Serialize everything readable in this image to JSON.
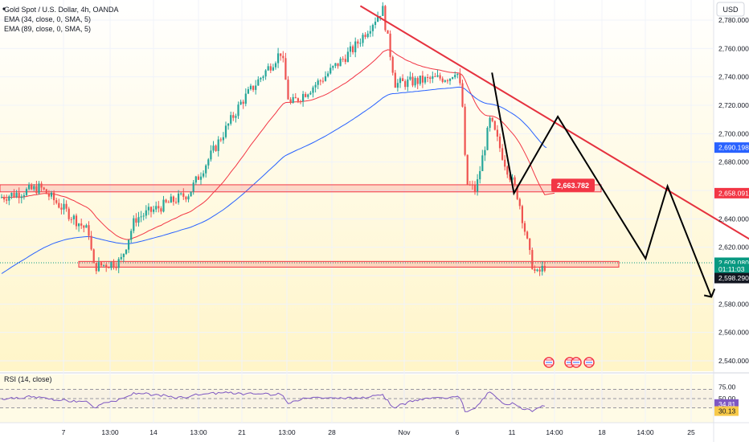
{
  "legend": {
    "symbol": "Gold Spot / U.S. Dollar, 4h, OANDA",
    "ema1": "EMA (34, close, 0, SMA, 5)",
    "ema2": "EMA (89, close, 0, SMA, 5)"
  },
  "currency_button": "USD",
  "colors": {
    "up": "#26a69a",
    "down": "#ef5350",
    "ema_fast": "#f23645",
    "ema_slow": "#2962ff",
    "zone": "#f23645",
    "trend": "#e5323f",
    "rsi": "#7e57c2",
    "bg_top": "#ffffff",
    "bg_bottom": "#fff5c8"
  },
  "chart_data": [
    {
      "type": "candlestick",
      "title": "Gold Spot / U.S. Dollar, 4h, OANDA",
      "y_range": [
        2530,
        2795
      ],
      "y_ticks": [
        "2,780.000",
        "2,760.000",
        "2,740.000",
        "2,720.000",
        "2,700.000",
        "2,680.000",
        "2,660.000",
        "2,640.000",
        "2,620.000",
        "2,600.000",
        "2,580.000",
        "2,560.000",
        "2,540.000"
      ],
      "x_ticks": [
        "7",
        "13:00",
        "14",
        "13:00",
        "21",
        "13:00",
        "28",
        "Nov",
        "6",
        "11",
        "14:00",
        "18",
        "14:00",
        "25"
      ],
      "price_labels": [
        {
          "text": "2,690.198",
          "kind": "ema_slow",
          "value": 2690.198
        },
        {
          "text": "2,658.091",
          "kind": "ema_fast",
          "value": 2658.091
        },
        {
          "text": "2,609.080",
          "kind": "last",
          "value": 2609.08
        },
        {
          "text": "01:11:03",
          "kind": "countdown",
          "value": 2604.6
        },
        {
          "text": "2,598.290",
          "kind": "low",
          "value": 2598.29
        }
      ],
      "annotation": {
        "text": "2,663.782",
        "value": 2663.782
      },
      "zones": [
        {
          "name": "resistance",
          "low": 2659,
          "high": 2664
        },
        {
          "name": "support",
          "low": 2606,
          "high": 2610
        }
      ],
      "trendline": [
        {
          "date": "Oct 30",
          "value": 2790
        },
        {
          "date": "Nov 18",
          "value": 2614
        }
      ],
      "projection": [
        {
          "date": "Nov 5",
          "value": 2743
        },
        {
          "date": "Nov 6",
          "value": 2658
        },
        {
          "date": "Nov 8",
          "value": 2712
        },
        {
          "date": "Nov 12",
          "value": 2612
        },
        {
          "date": "Nov 13",
          "value": 2663
        },
        {
          "date": "Nov 15",
          "value": 2585
        }
      ],
      "series": [
        {
          "name": "EMA (34, close, 0, SMA, 5)"
        },
        {
          "name": "EMA (89, close, 0, SMA, 5)"
        }
      ]
    },
    {
      "type": "line",
      "title": "RSI (14, close)",
      "y_range": [
        0,
        100
      ],
      "levels": [
        70,
        50,
        30
      ],
      "y_ticks": [
        "75.00",
        "50.00"
      ],
      "value_labels": [
        {
          "text": "34.81",
          "value": 34.81
        },
        {
          "text": "30.13",
          "value": 30.13
        }
      ]
    }
  ]
}
